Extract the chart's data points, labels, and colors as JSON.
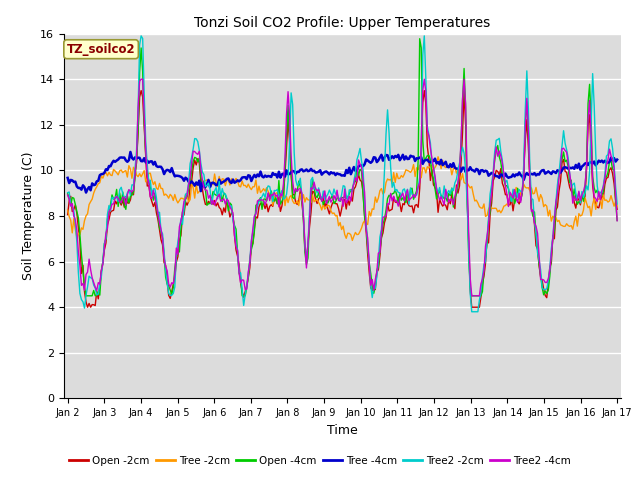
{
  "title": "Tonzi Soil CO2 Profile: Upper Temperatures",
  "xlabel": "Time",
  "ylabel": "Soil Temperature (C)",
  "ylim": [
    0,
    16
  ],
  "yticks": [
    0,
    2,
    4,
    6,
    8,
    10,
    12,
    14,
    16
  ],
  "tag_label": "TZ_soilco2",
  "tag_color": "#8b0000",
  "tag_bg": "#ffffcc",
  "tag_border": "#999933",
  "x_labels": [
    "Jan 2",
    "Jan 3",
    "Jan 4",
    "Jan 5",
    "Jan 6",
    "Jan 7",
    "Jan 8",
    "Jan 9",
    "Jan 10",
    "Jan 11",
    "Jan 12",
    "Jan 13",
    "Jan 14",
    "Jan 15",
    "Jan 16",
    "Jan 17"
  ],
  "series_names": [
    "Open -2cm",
    "Tree -2cm",
    "Open -4cm",
    "Tree -4cm",
    "Tree2 -2cm",
    "Tree2 -4cm"
  ],
  "series_colors": [
    "#cc0000",
    "#ff9900",
    "#00cc00",
    "#0000cc",
    "#00cccc",
    "#cc00cc"
  ],
  "series_lw": [
    1.0,
    1.0,
    1.0,
    1.8,
    1.0,
    1.0
  ],
  "bg_color": "#dcdcdc",
  "grid_color": "#ffffff",
  "figsize": [
    6.4,
    4.8
  ],
  "dpi": 100
}
